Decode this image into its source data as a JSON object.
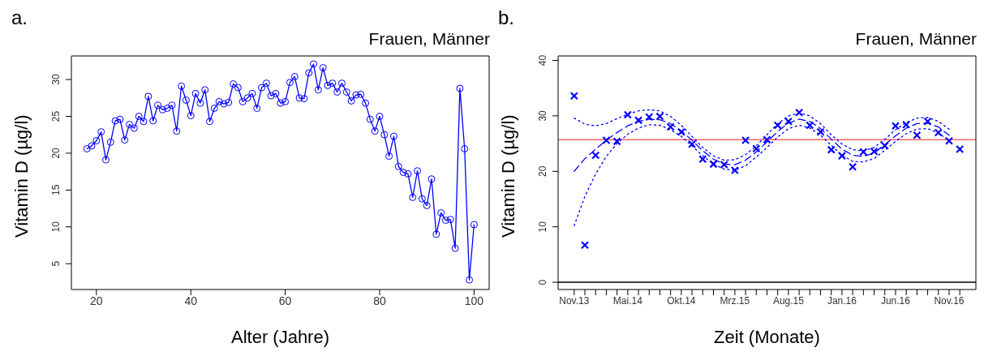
{
  "chart_data": [
    {
      "type": "line",
      "title": "Frauen, Männer",
      "annotations": [
        "a."
      ],
      "xlabel": "Alter (Jahre)",
      "ylabel": "Vitamin D (µg/l)",
      "color": "#0000ff",
      "marker": "circle",
      "x": [
        18,
        19,
        20,
        21,
        22,
        23,
        24,
        25,
        26,
        27,
        28,
        29,
        30,
        31,
        32,
        33,
        34,
        35,
        36,
        37,
        38,
        39,
        40,
        41,
        42,
        43,
        44,
        45,
        46,
        47,
        48,
        49,
        50,
        51,
        52,
        53,
        54,
        55,
        56,
        57,
        58,
        59,
        60,
        61,
        62,
        63,
        64,
        65,
        66,
        67,
        68,
        69,
        70,
        71,
        72,
        73,
        74,
        75,
        76,
        77,
        78,
        79,
        80,
        81,
        82,
        83,
        84,
        85,
        86,
        87,
        88,
        89,
        90,
        91,
        92,
        93,
        94,
        95,
        96,
        97,
        98,
        99,
        100
      ],
      "values": [
        20.6,
        21.0,
        21.7,
        22.9,
        19.1,
        21.5,
        24.4,
        24.6,
        21.8,
        23.9,
        23.4,
        25.0,
        24.3,
        27.7,
        24.4,
        26.5,
        25.9,
        26.1,
        26.5,
        23.0,
        29.1,
        27.2,
        25.1,
        28.1,
        26.8,
        28.6,
        24.3,
        26.1,
        27.0,
        26.7,
        26.9,
        29.4,
        28.9,
        27.0,
        27.5,
        28.1,
        26.1,
        28.9,
        29.5,
        27.8,
        28.1,
        26.8,
        27.0,
        29.6,
        30.4,
        27.5,
        27.4,
        30.9,
        32.1,
        28.6,
        31.6,
        29.2,
        29.5,
        28.3,
        29.5,
        28.3,
        27.1,
        27.9,
        28.0,
        26.8,
        24.6,
        23.0,
        25.0,
        22.5,
        19.6,
        22.3,
        18.2,
        17.4,
        17.2,
        14.0,
        17.6,
        13.8,
        12.9,
        16.5,
        9.0,
        11.9,
        10.9,
        11.0,
        7.1,
        28.8,
        20.6,
        2.8,
        10.3
      ],
      "xlim": [
        14.7,
        103.2
      ],
      "ylim": [
        1.5,
        33.2
      ],
      "xticks": [
        20,
        40,
        60,
        80,
        100
      ],
      "yticks": [
        5,
        10,
        15,
        20,
        25,
        30
      ]
    },
    {
      "type": "scatter",
      "title": "Frauen, Männer",
      "annotations": [
        "b."
      ],
      "xlabel": "Zeit (Monate)",
      "ylabel": "Vitamin D (µg/l)",
      "categories": [
        "Nov.13",
        null,
        null,
        null,
        null,
        "Mai.14",
        null,
        null,
        null,
        null,
        "Okt.14",
        null,
        null,
        null,
        null,
        "Mrz.15",
        null,
        null,
        null,
        null,
        "Aug.15",
        null,
        null,
        null,
        null,
        "Jan.16",
        null,
        null,
        null,
        null,
        "Jun.16",
        null,
        null,
        null,
        null,
        "Nov.16",
        null
      ],
      "ylim": [
        -1.3,
        40.8
      ],
      "yticks": [
        0,
        10,
        20,
        30,
        40
      ],
      "series": [
        {
          "marker": "cross",
          "color": "#0000ff",
          "values": [
            33.6,
            6.7,
            22.9,
            25.6,
            25.4,
            30.2,
            29.2,
            29.8,
            29.9,
            28.0,
            27.1,
            24.9,
            22.2,
            21.3,
            21.2,
            20.2,
            25.6,
            24.1,
            25.7,
            28.3,
            29.0,
            30.6,
            28.3,
            27.1,
            23.9,
            22.8,
            20.8,
            23.5,
            23.6,
            24.6,
            28.2,
            28.4,
            26.5,
            29.0,
            27.0,
            25.5,
            24.0
          ]
        },
        {
          "type": "line",
          "line_style": "dashed",
          "color": "#0000ff",
          "values": [
            20.0,
            22.3,
            24.0,
            25.6,
            27.0,
            28.2,
            29.0,
            29.4,
            29.3,
            28.6,
            27.3,
            25.6,
            23.7,
            22.2,
            21.3,
            21.2,
            22.0,
            23.5,
            25.3,
            27.2,
            28.7,
            29.4,
            29.0,
            27.7,
            25.8,
            24.0,
            22.9,
            22.7,
            23.3,
            24.8,
            26.4,
            27.8,
            28.6,
            28.7,
            28.0,
            26.5,
            null
          ]
        },
        {
          "type": "line",
          "line_style": "dotted",
          "color": "#0000ff",
          "values": [
            29.6,
            28.5,
            28.2,
            28.6,
            29.5,
            30.3,
            30.9,
            31.1,
            30.9,
            29.9,
            28.3,
            26.3,
            24.3,
            22.8,
            22.0,
            22.1,
            23.0,
            24.6,
            26.6,
            28.6,
            30.0,
            30.5,
            30.0,
            28.6,
            26.6,
            24.9,
            23.9,
            23.7,
            24.3,
            25.8,
            27.5,
            28.8,
            29.6,
            29.7,
            29.0,
            27.6,
            null
          ]
        },
        {
          "type": "line",
          "line_style": "dotted",
          "color": "#0000ff",
          "values": [
            10.2,
            15.5,
            19.5,
            22.7,
            25.0,
            26.7,
            27.8,
            28.4,
            28.3,
            27.5,
            26.3,
            24.6,
            22.8,
            21.3,
            20.4,
            20.2,
            21.0,
            22.6,
            24.3,
            26.2,
            27.7,
            28.3,
            27.8,
            26.5,
            24.7,
            22.9,
            21.8,
            21.7,
            22.3,
            23.8,
            25.4,
            26.8,
            27.6,
            27.7,
            26.9,
            25.5,
            null
          ]
        }
      ],
      "ref_lines": [
        {
          "axis": "y",
          "value": 25.7,
          "color": "#ff6666"
        },
        {
          "axis": "y",
          "value": 0,
          "color": "#000000"
        }
      ]
    }
  ]
}
